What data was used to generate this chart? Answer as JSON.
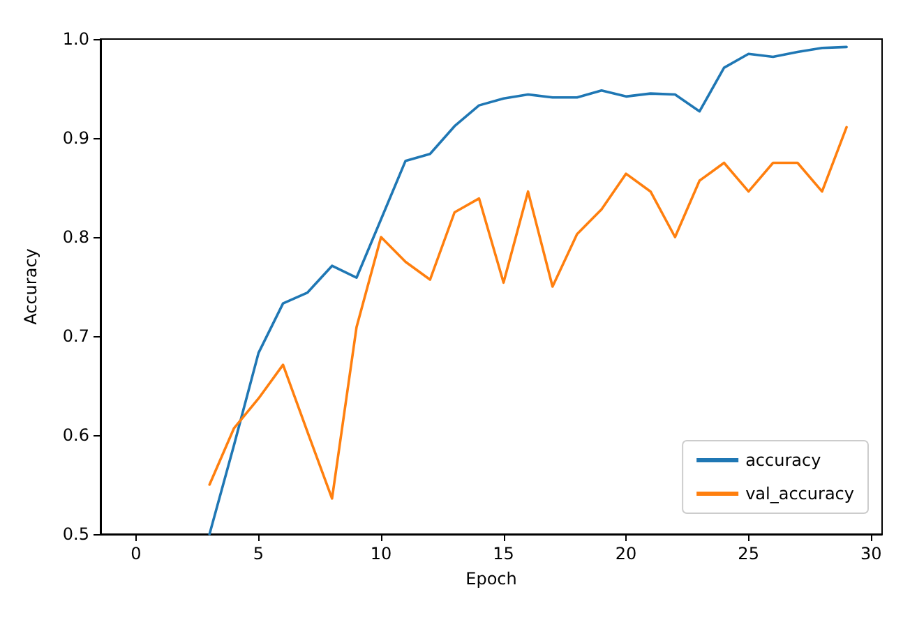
{
  "chart_data": {
    "type": "line",
    "xlabel": "Epoch",
    "ylabel": "Accuracy",
    "x": [
      3,
      4,
      5,
      6,
      7,
      8,
      9,
      10,
      11,
      12,
      13,
      14,
      15,
      16,
      17,
      18,
      19,
      20,
      21,
      22,
      23,
      24,
      25,
      26,
      27,
      28,
      29
    ],
    "series": [
      {
        "name": "accuracy",
        "color": "#1f77b4",
        "values": [
          0.5,
          0.59,
          0.683,
          0.733,
          0.744,
          0.771,
          0.759,
          0.818,
          0.877,
          0.884,
          0.912,
          0.933,
          0.94,
          0.944,
          0.941,
          0.941,
          0.948,
          0.942,
          0.945,
          0.944,
          0.927,
          0.971,
          0.985,
          0.982,
          0.987,
          0.991,
          0.992
        ]
      },
      {
        "name": "val_accuracy",
        "color": "#ff7f0e",
        "values": [
          0.55,
          0.607,
          0.637,
          0.671,
          0.603,
          0.536,
          0.709,
          0.8,
          0.775,
          0.757,
          0.825,
          0.839,
          0.754,
          0.846,
          0.75,
          0.803,
          0.828,
          0.864,
          0.846,
          0.8,
          0.857,
          0.875,
          0.846,
          0.875,
          0.875,
          0.846,
          0.911
        ]
      }
    ],
    "xlim": [
      -1.45,
      30.45
    ],
    "xticks": [
      0,
      5,
      10,
      15,
      20,
      25,
      30
    ],
    "ylim": [
      0.5,
      1.0
    ],
    "yticks": [
      0.5,
      0.6,
      0.7,
      0.8,
      0.9,
      {
        "value": 1.0,
        "label": "1.0"
      }
    ],
    "grid": false,
    "legend": "bottom right",
    "marker": "none",
    "line_style": "solid"
  }
}
